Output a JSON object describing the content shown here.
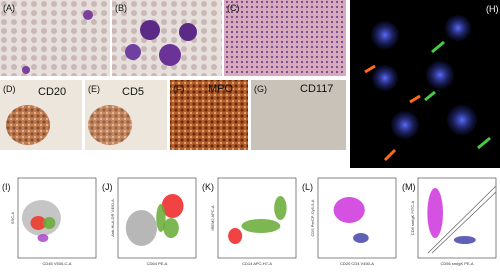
{
  "panels": [
    {
      "label": "(A)"
    },
    {
      "label": "(B)"
    },
    {
      "label": "(C)"
    },
    {
      "label": "(D)",
      "stain": "CD20"
    },
    {
      "label": "(E)",
      "stain": "CD5"
    },
    {
      "label": "(F)",
      "stain": "MPO"
    },
    {
      "label": "(G)",
      "stain": "CD117"
    },
    {
      "label": "(H)"
    }
  ],
  "flow_plots": [
    {
      "label": "(I)",
      "x_label": "CD45 V500-C-A",
      "y_label": "SSC-A"
    },
    {
      "label": "(J)",
      "x_label": "CD64 PE-A",
      "y_label": "Anti-HLA-DR V450-A"
    },
    {
      "label": "(K)",
      "x_label": "CD14 APC-H7-A",
      "y_label": "IREM2 APC-A"
    },
    {
      "label": "(L)",
      "x_label": "CD20 CD4 V450-A",
      "y_label": "CD5 PerCP-Cy5-5-A"
    },
    {
      "label": "(M)",
      "x_label": "CD56 smIgK PE-A",
      "y_label": "CD8 smIgK FITC-A"
    }
  ]
}
